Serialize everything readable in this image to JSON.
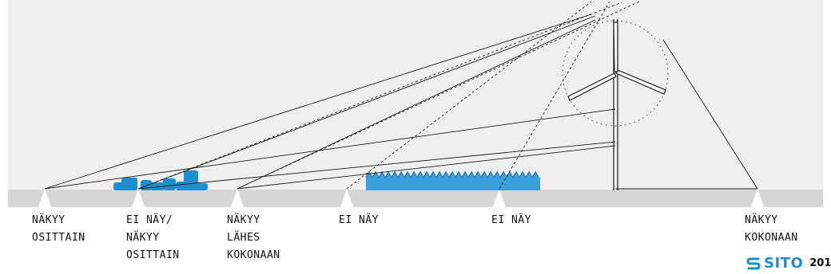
{
  "labels": {
    "viewpoint_1": [
      "NÄKYY",
      "OSITTAIN"
    ],
    "viewpoint_2": [
      "EI NÄY/",
      "NÄKYY",
      "OSITTAIN"
    ],
    "viewpoint_3": [
      "NÄKYY",
      "LÄHES",
      "KOKONAAN"
    ],
    "viewpoint_4": [
      "EI NÄY"
    ],
    "viewpoint_5": [
      "EI NÄY"
    ],
    "viewpoint_6": [
      "NÄKYY",
      "KOKONAAN"
    ]
  },
  "logo": {
    "text": "SITO",
    "year": "201"
  },
  "colors": {
    "sky": "#efefef",
    "ground": "#d6d6d6",
    "buildings": "#1d8fd0",
    "forest": "#3aa0dc",
    "lines": "#1a1a1a",
    "logo": "#1a8fd0"
  }
}
